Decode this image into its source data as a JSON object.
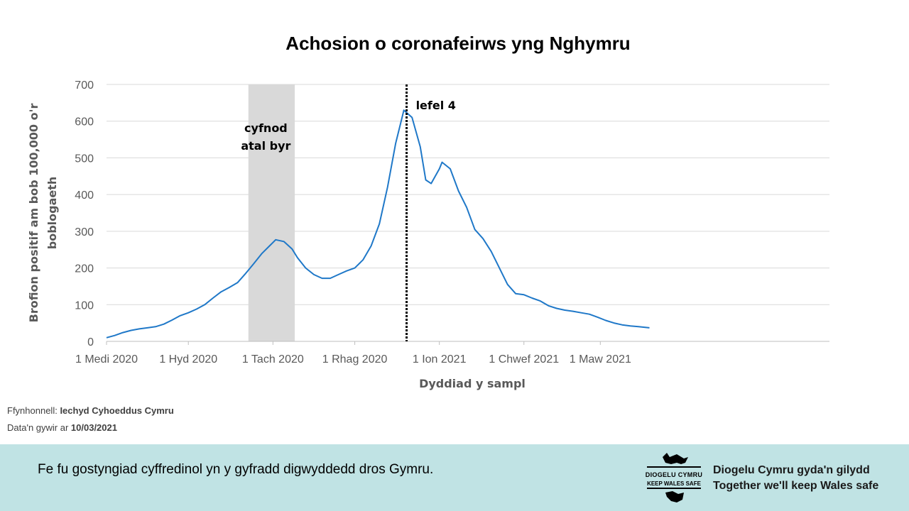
{
  "chart_data": {
    "type": "line",
    "title": "Achosion o coronafeirws yng Nghymru",
    "xlabel": "Dyddiad  y sampl",
    "ylabel_line1": "Brofion positif  am bob 100,000 o'r",
    "ylabel_line2": "boblogaeth",
    "ylim": [
      0,
      700
    ],
    "yticks": [
      0,
      100,
      200,
      300,
      400,
      500,
      600,
      700
    ],
    "xlim": [
      "2020-09-01",
      "2021-05-24"
    ],
    "xticks": [
      {
        "date": "2020-09-01",
        "label": "1 Medi 2020"
      },
      {
        "date": "2020-10-01",
        "label": "1 Hyd 2020"
      },
      {
        "date": "2020-11-01",
        "label": "1 Tach 2020"
      },
      {
        "date": "2020-12-01",
        "label": "1 Rhag 2020"
      },
      {
        "date": "2021-01-01",
        "label": "1 Ion 2021"
      },
      {
        "date": "2021-02-01",
        "label": "1 Chwef 2021"
      },
      {
        "date": "2021-03-01",
        "label": "1 Maw 2021"
      }
    ],
    "grid": "horizontal",
    "line_color": "#1f78c8",
    "shaded_region": {
      "start": "2020-10-23",
      "end": "2020-11-09",
      "label_line1": "cyfnod",
      "label_line2": "atal byr",
      "color": "#d9d9d9"
    },
    "vertical_marker": {
      "date": "2020-12-20",
      "label": "lefel 4"
    },
    "series": [
      {
        "values": [
          [
            "2020-09-01",
            10
          ],
          [
            "2020-09-04",
            16
          ],
          [
            "2020-09-07",
            24
          ],
          [
            "2020-09-10",
            30
          ],
          [
            "2020-09-13",
            34
          ],
          [
            "2020-09-16",
            37
          ],
          [
            "2020-09-19",
            40
          ],
          [
            "2020-09-22",
            47
          ],
          [
            "2020-09-25",
            58
          ],
          [
            "2020-09-28",
            70
          ],
          [
            "2020-10-01",
            78
          ],
          [
            "2020-10-04",
            88
          ],
          [
            "2020-10-07",
            100
          ],
          [
            "2020-10-10",
            118
          ],
          [
            "2020-10-13",
            135
          ],
          [
            "2020-10-16",
            147
          ],
          [
            "2020-10-19",
            160
          ],
          [
            "2020-10-22",
            185
          ],
          [
            "2020-10-25",
            212
          ],
          [
            "2020-10-28",
            240
          ],
          [
            "2020-10-31",
            262
          ],
          [
            "2020-11-02",
            277
          ],
          [
            "2020-11-05",
            272
          ],
          [
            "2020-11-08",
            252
          ],
          [
            "2020-11-10",
            228
          ],
          [
            "2020-11-13",
            200
          ],
          [
            "2020-11-16",
            182
          ],
          [
            "2020-11-19",
            172
          ],
          [
            "2020-11-22",
            172
          ],
          [
            "2020-11-25",
            182
          ],
          [
            "2020-11-28",
            192
          ],
          [
            "2020-12-01",
            200
          ],
          [
            "2020-12-04",
            222
          ],
          [
            "2020-12-07",
            260
          ],
          [
            "2020-12-10",
            320
          ],
          [
            "2020-12-13",
            420
          ],
          [
            "2020-12-16",
            540
          ],
          [
            "2020-12-19",
            630
          ],
          [
            "2020-12-22",
            610
          ],
          [
            "2020-12-25",
            530
          ],
          [
            "2020-12-27",
            440
          ],
          [
            "2020-12-29",
            430
          ],
          [
            "2021-01-01",
            470
          ],
          [
            "2021-01-02",
            488
          ],
          [
            "2021-01-05",
            470
          ],
          [
            "2021-01-08",
            410
          ],
          [
            "2021-01-11",
            365
          ],
          [
            "2021-01-14",
            305
          ],
          [
            "2021-01-17",
            280
          ],
          [
            "2021-01-20",
            245
          ],
          [
            "2021-01-23",
            200
          ],
          [
            "2021-01-26",
            155
          ],
          [
            "2021-01-29",
            130
          ],
          [
            "2021-02-01",
            127
          ],
          [
            "2021-02-04",
            118
          ],
          [
            "2021-02-07",
            110
          ],
          [
            "2021-02-10",
            97
          ],
          [
            "2021-02-13",
            90
          ],
          [
            "2021-02-16",
            85
          ],
          [
            "2021-02-19",
            82
          ],
          [
            "2021-02-22",
            78
          ],
          [
            "2021-02-25",
            74
          ],
          [
            "2021-02-28",
            66
          ],
          [
            "2021-03-03",
            57
          ],
          [
            "2021-03-06",
            50
          ],
          [
            "2021-03-09",
            45
          ],
          [
            "2021-03-12",
            42
          ],
          [
            "2021-03-15",
            40
          ],
          [
            "2021-03-19",
            37
          ]
        ]
      }
    ]
  },
  "source": {
    "label": "Ffynhonnell: ",
    "name": "Iechyd Cyhoeddus Cymru",
    "date_label": "Data'n gywir ar ",
    "date": "10/03/2021"
  },
  "footer": {
    "message": "Fe fu gostyngiad cyffredinol yn y gyfradd digwyddedd dros Gymru.",
    "logo_top": "DIOGELU CYMRU",
    "logo_bottom": "KEEP WALES SAFE",
    "tagline_welsh": "Diogelu Cymru gyda'n gilydd",
    "tagline_english": "Together we'll keep Wales safe"
  },
  "colors": {
    "footer_bg": "#c0e3e4",
    "grid": "#d9d9d9",
    "line": "#1f78c8"
  }
}
